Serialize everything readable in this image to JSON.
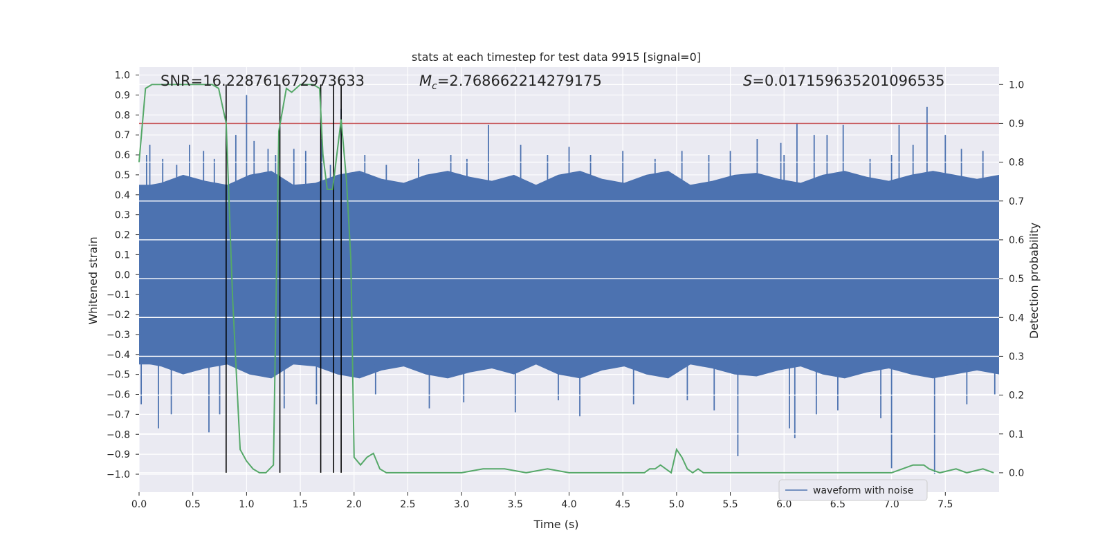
{
  "chart_data": {
    "type": "line",
    "title": "stats at each timestep for test data 9915 [signal=0]",
    "xlabel": "Time (s)",
    "ylabel": "Whitened strain",
    "y2label": "Detection probability",
    "xlim": [
      0.0,
      8.0
    ],
    "ylim": [
      -1.09,
      1.04
    ],
    "y2lim": [
      -0.05,
      1.045
    ],
    "xticks": [
      "0.0",
      "0.5",
      "1.0",
      "1.5",
      "2.0",
      "2.5",
      "3.0",
      "3.5",
      "4.0",
      "4.5",
      "5.0",
      "5.5",
      "6.0",
      "6.5",
      "7.0",
      "7.5"
    ],
    "yticks": [
      "1.0",
      "0.9",
      "0.8",
      "0.7",
      "0.6",
      "0.5",
      "0.4",
      "0.3",
      "0.2",
      "0.1",
      "0.0",
      "-0.1",
      "-0.2",
      "-0.3",
      "-0.4",
      "-0.5",
      "-0.6",
      "-0.7",
      "-0.8",
      "-0.9",
      "-1.0"
    ],
    "y2ticks": [
      "1.0",
      "0.9",
      "0.8",
      "0.7",
      "0.6",
      "0.5",
      "0.4",
      "0.3",
      "0.2",
      "0.1",
      "0.0"
    ],
    "annotations": {
      "snr": "SNR=16.228761672973633",
      "mc_symbol": "M",
      "mc_sub": "c",
      "mc_value": "=2.768662214279175",
      "s_symbol": "S",
      "s_value": "=0.017159635201096535"
    },
    "threshold": 0.9,
    "vertical_lines_t": [
      0.81,
      1.31,
      1.69,
      1.81,
      1.88
    ],
    "waveform": {
      "name": "waveform with noise",
      "color": "#4c72b0",
      "band": [
        -0.45,
        0.45
      ],
      "envelope_top": [
        0.44,
        0.46,
        0.5,
        0.47,
        0.45,
        0.5,
        0.52,
        0.45,
        0.46,
        0.5,
        0.52,
        0.48,
        0.46,
        0.5,
        0.52,
        0.49,
        0.47,
        0.5,
        0.45,
        0.5,
        0.52,
        0.48,
        0.46,
        0.5,
        0.52,
        0.45,
        0.47,
        0.5,
        0.51,
        0.48,
        0.46,
        0.5,
        0.52,
        0.49,
        0.47,
        0.5,
        0.52,
        0.5,
        0.48,
        0.5
      ],
      "envelope_bottom": [
        -0.44,
        -0.46,
        -0.5,
        -0.47,
        -0.45,
        -0.5,
        -0.52,
        -0.45,
        -0.46,
        -0.5,
        -0.52,
        -0.48,
        -0.46,
        -0.5,
        -0.52,
        -0.49,
        -0.47,
        -0.5,
        -0.45,
        -0.5,
        -0.52,
        -0.48,
        -0.46,
        -0.5,
        -0.52,
        -0.45,
        -0.47,
        -0.5,
        -0.51,
        -0.48,
        -0.46,
        -0.5,
        -0.52,
        -0.49,
        -0.47,
        -0.5,
        -0.52,
        -0.5,
        -0.48,
        -0.5
      ],
      "spikes": [
        {
          "t": 0.07,
          "v": 0.6
        },
        {
          "t": 0.1,
          "v": 0.65
        },
        {
          "t": 0.22,
          "v": 0.58
        },
        {
          "t": 0.35,
          "v": 0.55
        },
        {
          "t": 0.47,
          "v": 0.65
        },
        {
          "t": 0.6,
          "v": 0.62
        },
        {
          "t": 0.7,
          "v": 0.58
        },
        {
          "t": 0.9,
          "v": 0.7
        },
        {
          "t": 1.0,
          "v": 0.9
        },
        {
          "t": 1.07,
          "v": 0.67
        },
        {
          "t": 1.2,
          "v": 0.63
        },
        {
          "t": 1.27,
          "v": 0.6
        },
        {
          "t": 1.44,
          "v": 0.63
        },
        {
          "t": 1.55,
          "v": 0.62
        },
        {
          "t": 1.7,
          "v": 0.68
        },
        {
          "t": 1.78,
          "v": 0.55
        },
        {
          "t": 1.88,
          "v": 0.83
        },
        {
          "t": 2.1,
          "v": 0.6
        },
        {
          "t": 2.3,
          "v": 0.55
        },
        {
          "t": 2.6,
          "v": 0.58
        },
        {
          "t": 2.9,
          "v": 0.6
        },
        {
          "t": 3.05,
          "v": 0.58
        },
        {
          "t": 3.25,
          "v": 0.75
        },
        {
          "t": 3.55,
          "v": 0.65
        },
        {
          "t": 3.8,
          "v": 0.6
        },
        {
          "t": 4.0,
          "v": 0.64
        },
        {
          "t": 4.2,
          "v": 0.6
        },
        {
          "t": 4.5,
          "v": 0.62
        },
        {
          "t": 4.8,
          "v": 0.58
        },
        {
          "t": 5.05,
          "v": 0.62
        },
        {
          "t": 5.3,
          "v": 0.6
        },
        {
          "t": 5.5,
          "v": 0.62
        },
        {
          "t": 5.75,
          "v": 0.68
        },
        {
          "t": 5.97,
          "v": 0.66
        },
        {
          "t": 6.0,
          "v": 0.6
        },
        {
          "t": 6.12,
          "v": 0.76
        },
        {
          "t": 6.28,
          "v": 0.7
        },
        {
          "t": 6.4,
          "v": 0.7
        },
        {
          "t": 6.55,
          "v": 0.75
        },
        {
          "t": 6.8,
          "v": 0.58
        },
        {
          "t": 7.0,
          "v": 0.6
        },
        {
          "t": 7.07,
          "v": 0.75
        },
        {
          "t": 7.2,
          "v": 0.65
        },
        {
          "t": 7.33,
          "v": 0.84
        },
        {
          "t": 7.5,
          "v": 0.7
        },
        {
          "t": 7.65,
          "v": 0.63
        },
        {
          "t": 7.85,
          "v": 0.62
        },
        {
          "t": 0.02,
          "v": -0.65
        },
        {
          "t": 0.18,
          "v": -0.77
        },
        {
          "t": 0.3,
          "v": -0.7
        },
        {
          "t": 0.65,
          "v": -0.79
        },
        {
          "t": 0.75,
          "v": -0.7
        },
        {
          "t": 1.35,
          "v": -0.67
        },
        {
          "t": 1.65,
          "v": -0.65
        },
        {
          "t": 2.2,
          "v": -0.6
        },
        {
          "t": 2.7,
          "v": -0.67
        },
        {
          "t": 3.02,
          "v": -0.64
        },
        {
          "t": 3.5,
          "v": -0.69
        },
        {
          "t": 3.9,
          "v": -0.63
        },
        {
          "t": 4.1,
          "v": -0.71
        },
        {
          "t": 4.6,
          "v": -0.65
        },
        {
          "t": 5.1,
          "v": -0.63
        },
        {
          "t": 5.35,
          "v": -0.68
        },
        {
          "t": 5.57,
          "v": -0.91
        },
        {
          "t": 6.05,
          "v": -0.77
        },
        {
          "t": 6.1,
          "v": -0.82
        },
        {
          "t": 6.3,
          "v": -0.7
        },
        {
          "t": 6.5,
          "v": -0.68
        },
        {
          "t": 6.9,
          "v": -0.72
        },
        {
          "t": 7.0,
          "v": -0.97
        },
        {
          "t": 7.4,
          "v": -1.0
        },
        {
          "t": 7.7,
          "v": -0.65
        },
        {
          "t": 7.96,
          "v": -0.6
        }
      ]
    },
    "detection_probability": {
      "color": "#55a868",
      "t": [
        0.0,
        0.06,
        0.12,
        0.2,
        0.3,
        0.4,
        0.5,
        0.6,
        0.68,
        0.74,
        0.81,
        0.87,
        0.94,
        1.0,
        1.06,
        1.12,
        1.18,
        1.25,
        1.3,
        1.37,
        1.42,
        1.5,
        1.56,
        1.62,
        1.68,
        1.71,
        1.75,
        1.8,
        1.84,
        1.88,
        1.93,
        1.97,
        2.0,
        2.06,
        2.12,
        2.18,
        2.24,
        2.3,
        2.5,
        3.0,
        3.2,
        3.4,
        3.6,
        3.8,
        4.0,
        4.3,
        4.5,
        4.7,
        4.75,
        4.8,
        4.85,
        4.9,
        4.95,
        5.0,
        5.05,
        5.1,
        5.15,
        5.2,
        5.25,
        5.3,
        5.4,
        5.6,
        6.0,
        6.5,
        7.0,
        7.1,
        7.2,
        7.3,
        7.35,
        7.45,
        7.6,
        7.7,
        7.85,
        7.95
      ],
      "p": [
        0.8,
        0.99,
        1.0,
        1.0,
        1.0,
        1.0,
        1.0,
        1.0,
        1.0,
        0.99,
        0.9,
        0.45,
        0.06,
        0.03,
        0.01,
        0.0,
        0.0,
        0.02,
        0.88,
        0.99,
        0.98,
        1.0,
        1.0,
        1.0,
        0.99,
        0.82,
        0.73,
        0.73,
        0.82,
        0.91,
        0.75,
        0.55,
        0.04,
        0.02,
        0.04,
        0.05,
        0.01,
        0.0,
        0.0,
        0.0,
        0.01,
        0.01,
        0.0,
        0.01,
        0.0,
        0.0,
        0.0,
        0.0,
        0.01,
        0.01,
        0.02,
        0.01,
        0.0,
        0.06,
        0.04,
        0.01,
        0.0,
        0.01,
        0.0,
        0.0,
        0.0,
        0.0,
        0.0,
        0.0,
        0.0,
        0.01,
        0.02,
        0.02,
        0.01,
        0.0,
        0.01,
        0.0,
        0.01,
        0.0
      ]
    },
    "legend": {
      "label": "waveform with noise",
      "position": "bottom-right"
    },
    "colors": {
      "background": "#eaeaf2",
      "grid": "#ffffff",
      "threshold_line": "#c44e52",
      "vline": "#000000",
      "text": "#262626"
    }
  }
}
